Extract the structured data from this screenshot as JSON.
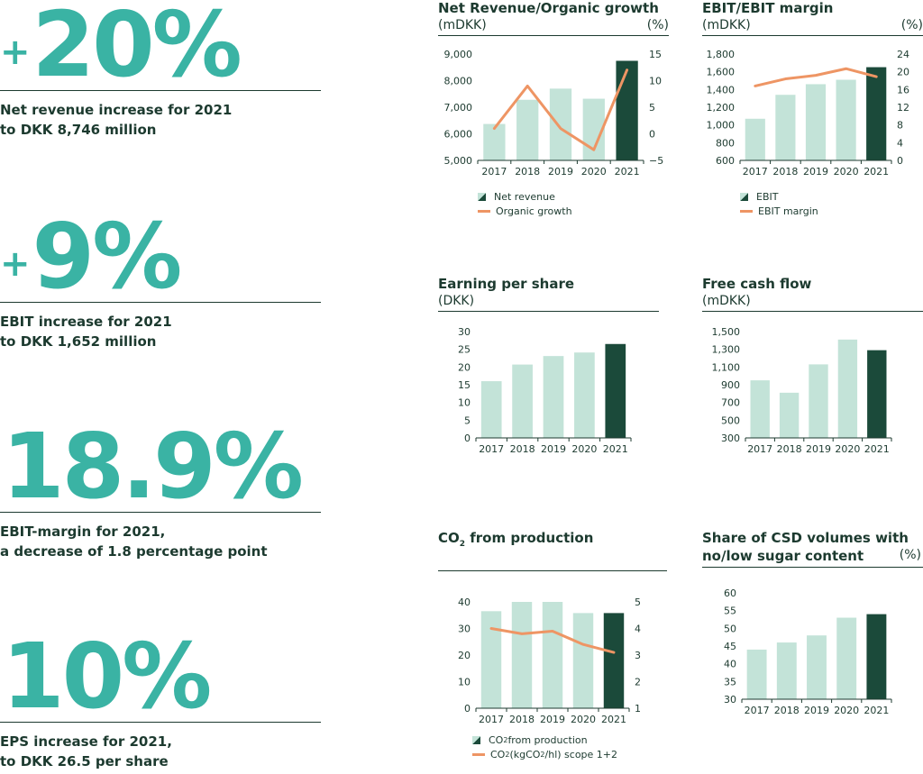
{
  "kpis": [
    {
      "plus": "+",
      "value": "20%",
      "desc1": "Net revenue increase for 2021",
      "desc2": "to DKK 8,746 million"
    },
    {
      "plus": "+",
      "value": "9%",
      "desc1": "EBIT increase for 2021",
      "desc2": "to DKK 1,652 million"
    },
    {
      "plus": "",
      "value": "18.9%",
      "desc1": "EBIT-margin for 2021,",
      "desc2": "a decrease of 1.8 percentage point"
    },
    {
      "plus": "",
      "value": "10%",
      "desc1": "EPS increase for 2021,",
      "desc2": "to DKK 26.5 per share"
    }
  ],
  "colors": {
    "bar": "#c3e3d8",
    "highlight_bar": "#1b4a3a",
    "line": "#ee9564",
    "accent": "#3ab3a4"
  },
  "chart_data": [
    {
      "type": "bar",
      "title": "Net Revenue/Organic growth",
      "unit_left": "(mDKK)",
      "unit_right": "(%)",
      "categories": [
        "2017",
        "2018",
        "2019",
        "2020",
        "2021"
      ],
      "series": [
        {
          "name": "Net revenue",
          "type": "bar",
          "axis": "left",
          "values": [
            6370,
            7280,
            7700,
            7320,
            8746
          ]
        },
        {
          "name": "Organic growth",
          "type": "line",
          "axis": "right",
          "values": [
            1,
            9,
            1,
            -3,
            12
          ]
        }
      ],
      "ylim_left": [
        5000,
        9000
      ],
      "yticks_left": [
        "5,000",
        "6,000",
        "7,000",
        "8,000",
        "9,000"
      ],
      "ylim_right": [
        -5,
        15
      ],
      "yticks_right": [
        "−5",
        "0",
        "5",
        "10",
        "15"
      ]
    },
    {
      "type": "bar",
      "title": "EBIT/EBIT margin",
      "unit_left": "(mDKK)",
      "unit_right": "(%)",
      "categories": [
        "2017",
        "2018",
        "2019",
        "2020",
        "2021"
      ],
      "series": [
        {
          "name": "EBIT",
          "type": "bar",
          "axis": "left",
          "values": [
            1070,
            1340,
            1460,
            1510,
            1652
          ]
        },
        {
          "name": "EBIT margin",
          "type": "line",
          "axis": "right",
          "values": [
            16.8,
            18.4,
            19.2,
            20.7,
            18.9
          ]
        }
      ],
      "ylim_left": [
        600,
        1800
      ],
      "yticks_left": [
        "600",
        "800",
        "1,000",
        "1,200",
        "1,400",
        "1,600",
        "1,800"
      ],
      "ylim_right": [
        0,
        24
      ],
      "yticks_right": [
        "0",
        "4",
        "8",
        "12",
        "16",
        "20",
        "24"
      ]
    },
    {
      "type": "bar",
      "title": "Earning per share",
      "unit_left": "(DKK)",
      "unit_right": "",
      "categories": [
        "2017",
        "2018",
        "2019",
        "2020",
        "2021"
      ],
      "series": [
        {
          "type": "bar",
          "axis": "left",
          "values": [
            16,
            20.7,
            23.1,
            24.1,
            26.5
          ]
        }
      ],
      "ylim_left": [
        0,
        30
      ],
      "yticks_left": [
        "0",
        "5",
        "10",
        "15",
        "20",
        "25",
        "30"
      ]
    },
    {
      "type": "bar",
      "title": "Free cash flow",
      "unit_left": "(mDKK)",
      "unit_right": "",
      "categories": [
        "2017",
        "2018",
        "2019",
        "2020",
        "2021"
      ],
      "series": [
        {
          "type": "bar",
          "axis": "left",
          "values": [
            950,
            810,
            1130,
            1410,
            1290
          ]
        }
      ],
      "ylim_left": [
        300,
        1500
      ],
      "yticks_left": [
        "300",
        "500",
        "700",
        "900",
        "1,100",
        "1,300",
        "1,500"
      ]
    },
    {
      "type": "bar",
      "title_main": "CO",
      "title_sub": "2",
      "title_rest": " from production",
      "unit_left": "",
      "unit_right": "",
      "categories": [
        "2017",
        "2018",
        "2019",
        "2020",
        "2021"
      ],
      "series": [
        {
          "name_main": "CO",
          "name_sub": "2",
          "name_rest": " from production",
          "type": "bar",
          "axis": "left",
          "values": [
            36.5,
            40,
            40,
            35.8,
            35.8
          ]
        },
        {
          "name_main": "CO",
          "name_sub": "2",
          "name_rest": " (kgCO",
          "name_sub2": "2",
          "name_rest2": "/hl) scope 1+2",
          "type": "line",
          "axis": "right",
          "values": [
            4.0,
            3.8,
            3.9,
            3.4,
            3.1
          ]
        }
      ],
      "ylim_left": [
        0,
        40
      ],
      "yticks_left": [
        "0",
        "10",
        "20",
        "30",
        "40"
      ],
      "ylim_right": [
        1,
        5
      ],
      "yticks_right": [
        "1",
        "2",
        "3",
        "4",
        "5"
      ]
    },
    {
      "type": "bar",
      "title_line1": "Share of CSD volumes with",
      "title_line2": "no/low sugar content",
      "unit_right": "(%)",
      "categories": [
        "2017",
        "2018",
        "2019",
        "2020",
        "2021"
      ],
      "series": [
        {
          "type": "bar",
          "axis": "left",
          "values": [
            44,
            46,
            48,
            53,
            54
          ]
        }
      ],
      "ylim_left": [
        30,
        60
      ],
      "yticks_left": [
        "30",
        "35",
        "40",
        "45",
        "50",
        "55",
        "60"
      ]
    }
  ]
}
